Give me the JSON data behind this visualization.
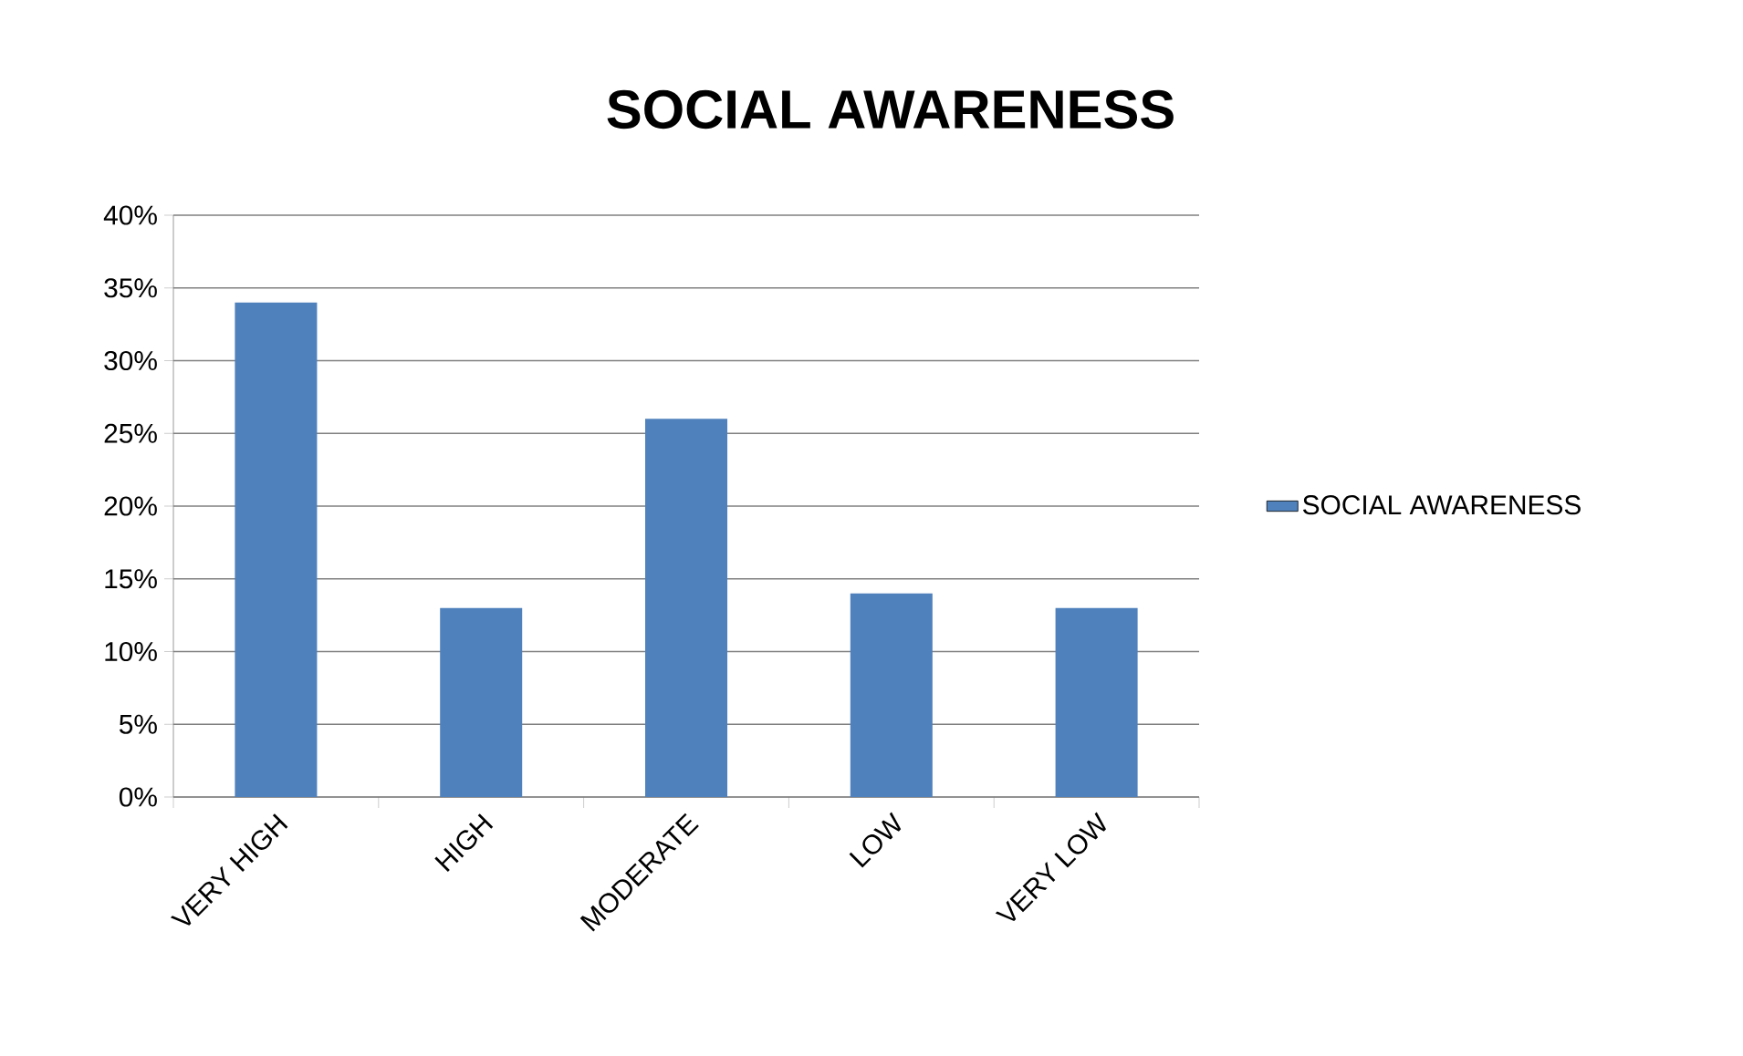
{
  "chart_data": {
    "type": "bar",
    "title": "SOCIAL AWARENESS",
    "categories": [
      "VERY HIGH",
      "HIGH",
      "MODERATE",
      "LOW",
      "VERY LOW"
    ],
    "series": [
      {
        "name": "SOCIAL AWARENESS",
        "color": "#4f81bd",
        "values": [
          34,
          13,
          26,
          14,
          13
        ]
      }
    ],
    "ylim": [
      0,
      40
    ],
    "yticks": [
      {
        "value": 0,
        "label": "0%"
      },
      {
        "value": 5,
        "label": "5%"
      },
      {
        "value": 10,
        "label": "10%"
      },
      {
        "value": 15,
        "label": "15%"
      },
      {
        "value": 20,
        "label": "20%"
      },
      {
        "value": 25,
        "label": "25%"
      },
      {
        "value": 30,
        "label": "30%"
      },
      {
        "value": 35,
        "label": "35%"
      },
      {
        "value": 40,
        "label": "40%"
      }
    ],
    "grid": "y",
    "legend": "right"
  }
}
